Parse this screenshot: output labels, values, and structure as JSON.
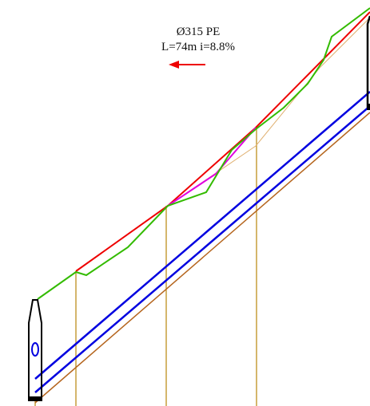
{
  "annotation": {
    "pipe": "Ø315 PE",
    "details": "L=74m i=8.8%"
  }
}
